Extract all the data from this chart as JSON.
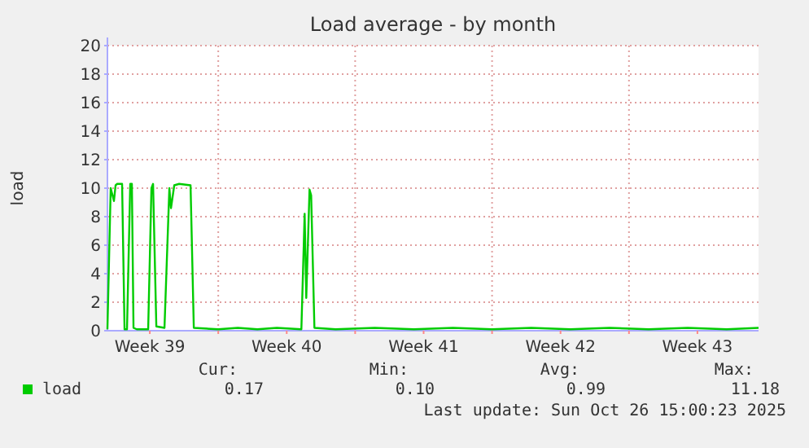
{
  "chart_data": {
    "type": "line",
    "title": "Load average - by month",
    "ylabel": "load",
    "x": [
      "2025-09-23T08:00",
      "2025-09-23T12:00",
      "2025-09-23T16:00",
      "2025-09-23T18:00",
      "2025-09-23T20:00",
      "2025-09-24T02:00",
      "2025-09-24T05:00",
      "2025-09-24T08:00",
      "2025-09-24T12:00",
      "2025-09-24T14:00",
      "2025-09-24T16:00",
      "2025-09-24T20:00",
      "2025-09-25T10:00",
      "2025-09-25T14:00",
      "2025-09-25T16:00",
      "2025-09-25T20:00",
      "2025-09-26T06:00",
      "2025-09-26T12:00",
      "2025-09-26T14:00",
      "2025-09-26T18:00",
      "2025-09-27T00:00",
      "2025-09-27T14:00",
      "2025-09-27T18:00",
      "2025-09-29T00:00",
      "2025-09-30T00:00",
      "2025-10-01T00:00",
      "2025-10-02T00:00",
      "2025-10-03T06:00",
      "2025-10-03T10:00",
      "2025-10-03T12:00",
      "2025-10-03T16:00",
      "2025-10-03T18:00",
      "2025-10-03T22:00",
      "2025-10-05T00:00",
      "2025-10-07T00:00",
      "2025-10-09T00:00",
      "2025-10-11T00:00",
      "2025-10-13T00:00",
      "2025-10-15T00:00",
      "2025-10-17T00:00",
      "2025-10-19T00:00",
      "2025-10-21T00:00",
      "2025-10-23T00:00",
      "2025-10-25T00:00",
      "2025-10-26T15:00"
    ],
    "series": [
      {
        "name": "load",
        "color": "#00cc00",
        "values": [
          0.1,
          10,
          9.1,
          10.2,
          10.3,
          10.3,
          0.1,
          0.1,
          10.3,
          10.3,
          0.2,
          0.1,
          0.1,
          10,
          10.3,
          0.3,
          0.2,
          10,
          8.6,
          10.2,
          10.3,
          10.2,
          0.2,
          0.1,
          0.2,
          0.1,
          0.2,
          0.1,
          8.2,
          2.3,
          9.9,
          9.5,
          0.2,
          0.1,
          0.2,
          0.1,
          0.2,
          0.1,
          0.2,
          0.1,
          0.2,
          0.1,
          0.2,
          0.1,
          0.2
        ]
      }
    ],
    "xlim": [
      "2025-09-23T08:00",
      "2025-10-26T15:00"
    ],
    "xticks": [
      {
        "value": "2025-09-25T12:00",
        "label": "Week 39"
      },
      {
        "value": "2025-09-29",
        "label": null
      },
      {
        "value": "2025-10-02T12:00",
        "label": "Week 40"
      },
      {
        "value": "2025-10-06",
        "label": null
      },
      {
        "value": "2025-10-09T12:00",
        "label": "Week 41"
      },
      {
        "value": "2025-10-13",
        "label": null
      },
      {
        "value": "2025-10-16T12:00",
        "label": "Week 42"
      },
      {
        "value": "2025-10-20",
        "label": null
      },
      {
        "value": "2025-10-23T12:00",
        "label": "Week 43"
      }
    ],
    "ylim": [
      0,
      20
    ],
    "yticks": [
      0,
      2,
      4,
      6,
      8,
      10,
      12,
      14,
      16,
      18,
      20
    ],
    "grid": true,
    "legend": "bottom left",
    "annotations": [
      "Cur:",
      "Min:",
      "Avg:",
      "Max:",
      "0.17",
      "0.10",
      "0.99",
      "11.18",
      "Last update: Sun Oct 26 15:00:23 2025"
    ]
  }
}
